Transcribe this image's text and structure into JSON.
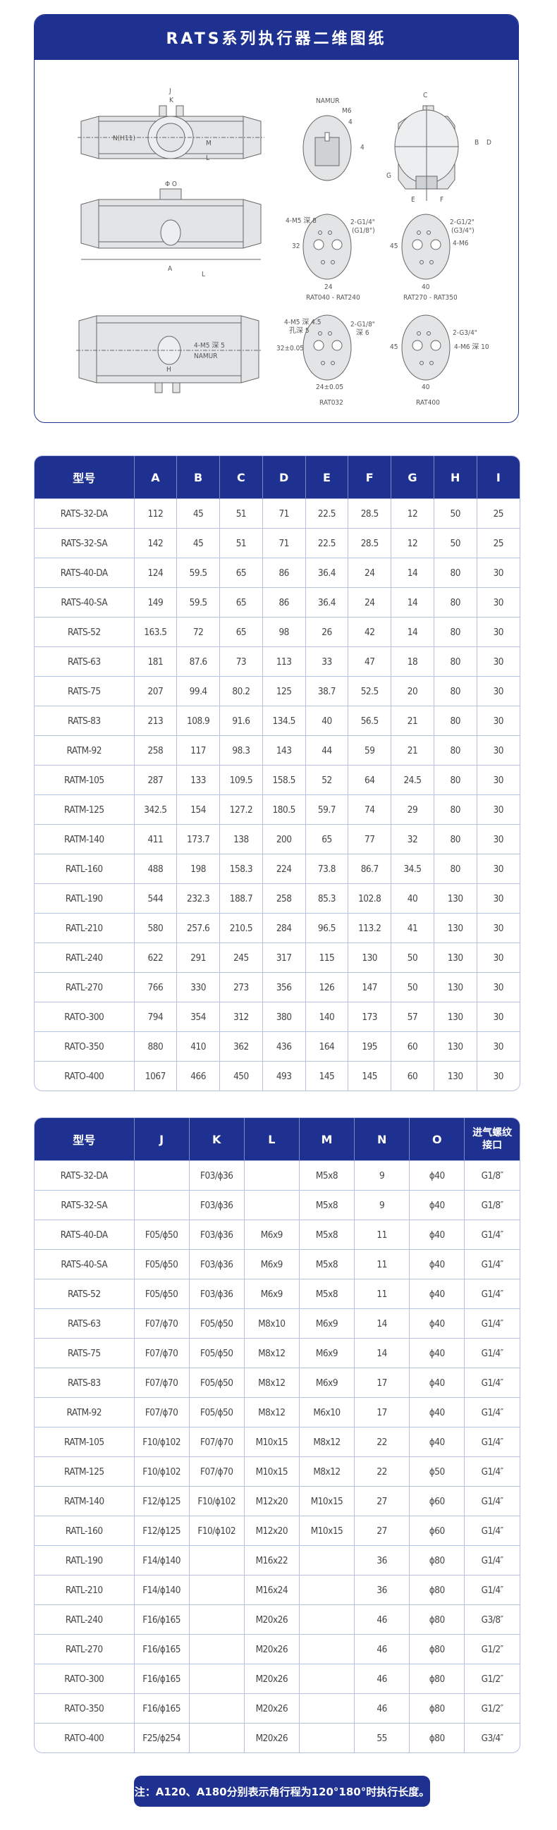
{
  "drawing": {
    "title": "RATS系列执行器二维图纸",
    "labels": {
      "J": "J",
      "K": "K",
      "N": "N(H11)",
      "M": "M",
      "L": "L",
      "O": "Φ O",
      "A": "A",
      "H": "H",
      "I": "I",
      "namur": "NAMUR",
      "m6": "M6",
      "four_a": "4",
      "four_b": "4",
      "C": "C",
      "B": "B",
      "D": "D",
      "G": "G",
      "E": "E",
      "F": "F",
      "p1_holes": "4-M5 深 8",
      "p1_port_a": "2-G1/4\"",
      "p1_port_b": "(G1/8\")",
      "p1_h": "32",
      "p1_w": "24",
      "p1_caption": "RAT040 - RAT240",
      "p2_port_a": "2-G1/2\"",
      "p2_port_b": "(G3/4\")",
      "p2_holes": "4-M6",
      "p2_h": "45",
      "p2_w": "40",
      "p2_caption": "RAT270 - RAT350",
      "p3_holes_a": "4-M5 深 4.5",
      "p3_holes_b": "孔深 5",
      "p3_port_a": "2-G1/8\"",
      "p3_port_b": "深 6",
      "p3_h": "32±0.05",
      "p3_w": "24±0.05",
      "p3_caption": "RAT032",
      "p4_port": "2-G3/4\"",
      "p4_holes": "4-M6 深 10",
      "p4_h": "45",
      "p4_w": "40",
      "p4_caption": "RAT400",
      "bottom_holes": "4-M5 深 5",
      "bottom_namur": "NAMUR"
    }
  },
  "table1": {
    "headers": [
      "型号",
      "A",
      "B",
      "C",
      "D",
      "E",
      "F",
      "G",
      "H",
      "I"
    ],
    "rows": [
      [
        "RATS-32-DA",
        "112",
        "45",
        "51",
        "71",
        "22.5",
        "28.5",
        "12",
        "50",
        "25"
      ],
      [
        "RATS-32-SA",
        "142",
        "45",
        "51",
        "71",
        "22.5",
        "28.5",
        "12",
        "50",
        "25"
      ],
      [
        "RATS-40-DA",
        "124",
        "59.5",
        "65",
        "86",
        "36.4",
        "24",
        "14",
        "80",
        "30"
      ],
      [
        "RATS-40-SA",
        "149",
        "59.5",
        "65",
        "86",
        "36.4",
        "24",
        "14",
        "80",
        "30"
      ],
      [
        "RATS-52",
        "163.5",
        "72",
        "65",
        "98",
        "26",
        "42",
        "14",
        "80",
        "30"
      ],
      [
        "RATS-63",
        "181",
        "87.6",
        "73",
        "113",
        "33",
        "47",
        "18",
        "80",
        "30"
      ],
      [
        "RATS-75",
        "207",
        "99.4",
        "80.2",
        "125",
        "38.7",
        "52.5",
        "20",
        "80",
        "30"
      ],
      [
        "RATS-83",
        "213",
        "108.9",
        "91.6",
        "134.5",
        "40",
        "56.5",
        "21",
        "80",
        "30"
      ],
      [
        "RATM-92",
        "258",
        "117",
        "98.3",
        "143",
        "44",
        "59",
        "21",
        "80",
        "30"
      ],
      [
        "RATM-105",
        "287",
        "133",
        "109.5",
        "158.5",
        "52",
        "64",
        "24.5",
        "80",
        "30"
      ],
      [
        "RATM-125",
        "342.5",
        "154",
        "127.2",
        "180.5",
        "59.7",
        "74",
        "29",
        "80",
        "30"
      ],
      [
        "RATM-140",
        "411",
        "173.7",
        "138",
        "200",
        "65",
        "77",
        "32",
        "80",
        "30"
      ],
      [
        "RATL-160",
        "488",
        "198",
        "158.3",
        "224",
        "73.8",
        "86.7",
        "34.5",
        "80",
        "30"
      ],
      [
        "RATL-190",
        "544",
        "232.3",
        "188.7",
        "258",
        "85.3",
        "102.8",
        "40",
        "130",
        "30"
      ],
      [
        "RATL-210",
        "580",
        "257.6",
        "210.5",
        "284",
        "96.5",
        "113.2",
        "41",
        "130",
        "30"
      ],
      [
        "RATL-240",
        "622",
        "291",
        "245",
        "317",
        "115",
        "130",
        "50",
        "130",
        "30"
      ],
      [
        "RATL-270",
        "766",
        "330",
        "273",
        "356",
        "126",
        "147",
        "50",
        "130",
        "30"
      ],
      [
        "RATO-300",
        "794",
        "354",
        "312",
        "380",
        "140",
        "173",
        "57",
        "130",
        "30"
      ],
      [
        "RATO-350",
        "880",
        "410",
        "362",
        "436",
        "164",
        "195",
        "60",
        "130",
        "30"
      ],
      [
        "RATO-400",
        "1067",
        "466",
        "450",
        "493",
        "145",
        "145",
        "60",
        "130",
        "30"
      ]
    ]
  },
  "table2": {
    "headers": [
      "型号",
      "J",
      "K",
      "L",
      "M",
      "N",
      "O",
      "进气螺纹接口"
    ],
    "rows": [
      [
        "RATS-32-DA",
        "",
        "F03/ϕ36",
        "",
        "M5x8",
        "9",
        "ϕ40",
        "G1/8″"
      ],
      [
        "RATS-32-SA",
        "",
        "F03/ϕ36",
        "",
        "M5x8",
        "9",
        "ϕ40",
        "G1/8″"
      ],
      [
        "RATS-40-DA",
        "F05/ϕ50",
        "F03/ϕ36",
        "M6x9",
        "M5x8",
        "11",
        "ϕ40",
        "G1/4″"
      ],
      [
        "RATS-40-SA",
        "F05/ϕ50",
        "F03/ϕ36",
        "M6x9",
        "M5x8",
        "11",
        "ϕ40",
        "G1/4″"
      ],
      [
        "RATS-52",
        "F05/ϕ50",
        "F03/ϕ36",
        "M6x9",
        "M5x8",
        "11",
        "ϕ40",
        "G1/4″"
      ],
      [
        "RATS-63",
        "F07/ϕ70",
        "F05/ϕ50",
        "M8x10",
        "M6x9",
        "14",
        "ϕ40",
        "G1/4″"
      ],
      [
        "RATS-75",
        "F07/ϕ70",
        "F05/ϕ50",
        "M8x12",
        "M6x9",
        "14",
        "ϕ40",
        "G1/4″"
      ],
      [
        "RATS-83",
        "F07/ϕ70",
        "F05/ϕ50",
        "M8x12",
        "M6x9",
        "17",
        "ϕ40",
        "G1/4″"
      ],
      [
        "RATM-92",
        "F07/ϕ70",
        "F05/ϕ50",
        "M8x12",
        "M6x10",
        "17",
        "ϕ40",
        "G1/4″"
      ],
      [
        "RATM-105",
        "F10/ϕ102",
        "F07/ϕ70",
        "M10x15",
        "M8x12",
        "22",
        "ϕ40",
        "G1/4″"
      ],
      [
        "RATM-125",
        "F10/ϕ102",
        "F07/ϕ70",
        "M10x15",
        "M8x12",
        "22",
        "ϕ50",
        "G1/4″"
      ],
      [
        "RATM-140",
        "F12/ϕ125",
        "F10/ϕ102",
        "M12x20",
        "M10x15",
        "27",
        "ϕ60",
        "G1/4″"
      ],
      [
        "RATL-160",
        "F12/ϕ125",
        "F10/ϕ102",
        "M12x20",
        "M10x15",
        "27",
        "ϕ60",
        "G1/4″"
      ],
      [
        "RATL-190",
        "F14/ϕ140",
        "",
        "M16x22",
        "",
        "36",
        "ϕ80",
        "G1/4″"
      ],
      [
        "RATL-210",
        "F14/ϕ140",
        "",
        "M16x24",
        "",
        "36",
        "ϕ80",
        "G1/4″"
      ],
      [
        "RATL-240",
        "F16/ϕ165",
        "",
        "M20x26",
        "",
        "46",
        "ϕ80",
        "G3/8″"
      ],
      [
        "RATL-270",
        "F16/ϕ165",
        "",
        "M20x26",
        "",
        "46",
        "ϕ80",
        "G1/2″"
      ],
      [
        "RATO-300",
        "F16/ϕ165",
        "",
        "M20x26",
        "",
        "46",
        "ϕ80",
        "G1/2″"
      ],
      [
        "RATO-350",
        "F16/ϕ165",
        "",
        "M20x26",
        "",
        "46",
        "ϕ80",
        "G1/2″"
      ],
      [
        "RATO-400",
        "F25/ϕ254",
        "",
        "M20x26",
        "",
        "55",
        "ϕ80",
        "G3/4″"
      ]
    ]
  },
  "note": "注：A120、A180分别表示角行程为120°180°时执行长度。",
  "colors": {
    "brand": "#1f3190",
    "grid": "#b8c0e0",
    "body_fill": "#e2e4e6"
  }
}
